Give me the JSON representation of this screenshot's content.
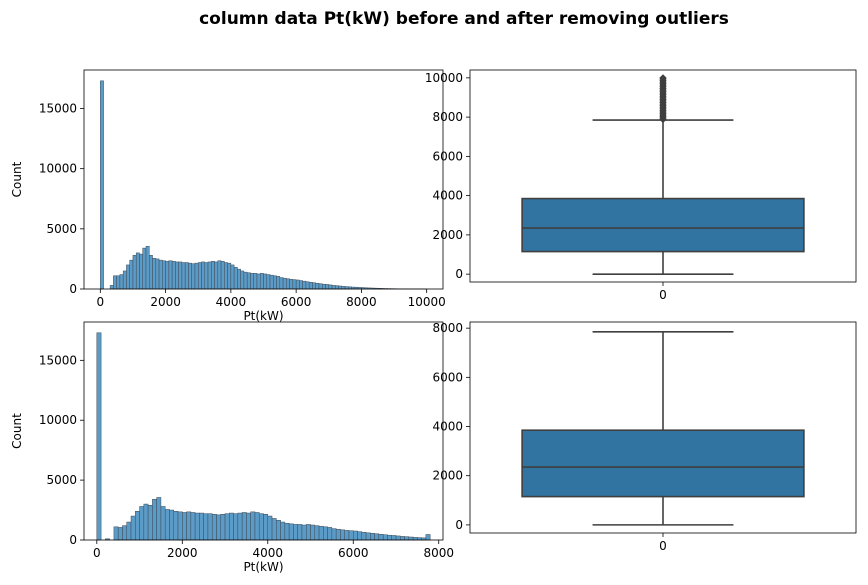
{
  "figure": {
    "title": "column data Pt(kW) before and after removing outliers"
  },
  "colors": {
    "hist_fill": "#5b9bc8",
    "hist_edge": "#3f4a55",
    "box_fill": "#3274a1",
    "box_line": "#3f3f3f"
  },
  "chart_data": [
    {
      "type": "bar",
      "subtype": "histogram",
      "panel": "top-left",
      "xlabel": "Pt(kW)",
      "ylabel": "Count",
      "xlim": [
        -500,
        10500
      ],
      "ylim": [
        0,
        18200
      ],
      "xticks": [
        0,
        2000,
        4000,
        6000,
        8000,
        10000
      ],
      "yticks": [
        0,
        5000,
        10000,
        15000
      ],
      "bin_width": 100,
      "bins": [
        {
          "x": 0,
          "value": 17300
        },
        {
          "x": 100,
          "value": 0
        },
        {
          "x": 200,
          "value": 0
        },
        {
          "x": 300,
          "value": 300
        },
        {
          "x": 400,
          "value": 1100
        },
        {
          "x": 500,
          "value": 1100
        },
        {
          "x": 600,
          "value": 1200
        },
        {
          "x": 700,
          "value": 1500
        },
        {
          "x": 800,
          "value": 2000
        },
        {
          "x": 900,
          "value": 2400
        },
        {
          "x": 1000,
          "value": 2800
        },
        {
          "x": 1100,
          "value": 3000
        },
        {
          "x": 1200,
          "value": 2900
        },
        {
          "x": 1300,
          "value": 3400
        },
        {
          "x": 1400,
          "value": 3550
        },
        {
          "x": 1500,
          "value": 2800
        },
        {
          "x": 1600,
          "value": 2550
        },
        {
          "x": 1700,
          "value": 2500
        },
        {
          "x": 1800,
          "value": 2400
        },
        {
          "x": 1900,
          "value": 2350
        },
        {
          "x": 2000,
          "value": 2300
        },
        {
          "x": 2100,
          "value": 2350
        },
        {
          "x": 2200,
          "value": 2300
        },
        {
          "x": 2300,
          "value": 2250
        },
        {
          "x": 2400,
          "value": 2250
        },
        {
          "x": 2500,
          "value": 2200
        },
        {
          "x": 2600,
          "value": 2200
        },
        {
          "x": 2700,
          "value": 2150
        },
        {
          "x": 2800,
          "value": 2100
        },
        {
          "x": 2900,
          "value": 2150
        },
        {
          "x": 3000,
          "value": 2200
        },
        {
          "x": 3100,
          "value": 2250
        },
        {
          "x": 3200,
          "value": 2200
        },
        {
          "x": 3300,
          "value": 2250
        },
        {
          "x": 3400,
          "value": 2300
        },
        {
          "x": 3500,
          "value": 2250
        },
        {
          "x": 3600,
          "value": 2350
        },
        {
          "x": 3700,
          "value": 2300
        },
        {
          "x": 3800,
          "value": 2200
        },
        {
          "x": 3900,
          "value": 2150
        },
        {
          "x": 4000,
          "value": 2000
        },
        {
          "x": 4100,
          "value": 1800
        },
        {
          "x": 4200,
          "value": 1650
        },
        {
          "x": 4300,
          "value": 1500
        },
        {
          "x": 4400,
          "value": 1400
        },
        {
          "x": 4500,
          "value": 1350
        },
        {
          "x": 4600,
          "value": 1300
        },
        {
          "x": 4700,
          "value": 1300
        },
        {
          "x": 4800,
          "value": 1250
        },
        {
          "x": 4900,
          "value": 1300
        },
        {
          "x": 5000,
          "value": 1250
        },
        {
          "x": 5100,
          "value": 1200
        },
        {
          "x": 5200,
          "value": 1150
        },
        {
          "x": 5300,
          "value": 1100
        },
        {
          "x": 5400,
          "value": 1050
        },
        {
          "x": 5500,
          "value": 950
        },
        {
          "x": 5600,
          "value": 900
        },
        {
          "x": 5700,
          "value": 850
        },
        {
          "x": 5800,
          "value": 800
        },
        {
          "x": 5900,
          "value": 780
        },
        {
          "x": 6000,
          "value": 750
        },
        {
          "x": 6100,
          "value": 700
        },
        {
          "x": 6200,
          "value": 650
        },
        {
          "x": 6300,
          "value": 600
        },
        {
          "x": 6400,
          "value": 560
        },
        {
          "x": 6500,
          "value": 520
        },
        {
          "x": 6600,
          "value": 480
        },
        {
          "x": 6700,
          "value": 440
        },
        {
          "x": 6800,
          "value": 400
        },
        {
          "x": 6900,
          "value": 380
        },
        {
          "x": 7000,
          "value": 340
        },
        {
          "x": 7100,
          "value": 300
        },
        {
          "x": 7200,
          "value": 280
        },
        {
          "x": 7300,
          "value": 250
        },
        {
          "x": 7400,
          "value": 220
        },
        {
          "x": 7500,
          "value": 200
        },
        {
          "x": 7600,
          "value": 180
        },
        {
          "x": 7700,
          "value": 160
        },
        {
          "x": 7800,
          "value": 150
        },
        {
          "x": 7900,
          "value": 130
        },
        {
          "x": 8000,
          "value": 120
        },
        {
          "x": 8100,
          "value": 100
        },
        {
          "x": 8200,
          "value": 90
        },
        {
          "x": 8300,
          "value": 80
        },
        {
          "x": 8400,
          "value": 70
        },
        {
          "x": 8500,
          "value": 60
        },
        {
          "x": 8600,
          "value": 50
        },
        {
          "x": 8700,
          "value": 40
        },
        {
          "x": 8800,
          "value": 35
        },
        {
          "x": 8900,
          "value": 30
        },
        {
          "x": 9000,
          "value": 25
        },
        {
          "x": 9100,
          "value": 20
        },
        {
          "x": 9200,
          "value": 18
        },
        {
          "x": 9300,
          "value": 15
        },
        {
          "x": 9400,
          "value": 12
        },
        {
          "x": 9500,
          "value": 10
        },
        {
          "x": 9600,
          "value": 8
        },
        {
          "x": 9700,
          "value": 6
        },
        {
          "x": 9800,
          "value": 5
        },
        {
          "x": 9900,
          "value": 5
        }
      ]
    },
    {
      "type": "boxplot",
      "panel": "top-right",
      "xticks": [
        "0"
      ],
      "yticks": [
        0,
        2000,
        4000,
        6000,
        8000,
        10000
      ],
      "ylim": [
        -400,
        10400
      ],
      "min": 0,
      "q1": 1150,
      "median": 2350,
      "q3": 3850,
      "whisker_high": 7850,
      "outliers": [
        7880,
        7950,
        8020,
        8100,
        8180,
        8260,
        8340,
        8420,
        8500,
        8580,
        8660,
        8740,
        8820,
        8900,
        8980,
        9060,
        9140,
        9220,
        9300,
        9380,
        9460,
        9540,
        9620,
        9700,
        9780,
        9860,
        9940,
        10000
      ]
    },
    {
      "type": "bar",
      "subtype": "histogram",
      "panel": "bottom-left",
      "xlabel": "Pt(kW)",
      "ylabel": "Count",
      "xlim": [
        -300,
        8100
      ],
      "ylim": [
        0,
        18200
      ],
      "xticks": [
        0,
        2000,
        4000,
        6000,
        8000
      ],
      "yticks": [
        0,
        5000,
        10000,
        15000
      ],
      "bin_width": 100,
      "bins": [
        {
          "x": 0,
          "value": 17300
        },
        {
          "x": 100,
          "value": 0
        },
        {
          "x": 200,
          "value": 100
        },
        {
          "x": 300,
          "value": 0
        },
        {
          "x": 400,
          "value": 1100
        },
        {
          "x": 500,
          "value": 1050
        },
        {
          "x": 600,
          "value": 1200
        },
        {
          "x": 700,
          "value": 1500
        },
        {
          "x": 800,
          "value": 2000
        },
        {
          "x": 900,
          "value": 2400
        },
        {
          "x": 1000,
          "value": 2800
        },
        {
          "x": 1100,
          "value": 3000
        },
        {
          "x": 1200,
          "value": 2900
        },
        {
          "x": 1300,
          "value": 3400
        },
        {
          "x": 1400,
          "value": 3550
        },
        {
          "x": 1500,
          "value": 2800
        },
        {
          "x": 1600,
          "value": 2550
        },
        {
          "x": 1700,
          "value": 2500
        },
        {
          "x": 1800,
          "value": 2400
        },
        {
          "x": 1900,
          "value": 2350
        },
        {
          "x": 2000,
          "value": 2300
        },
        {
          "x": 2100,
          "value": 2350
        },
        {
          "x": 2200,
          "value": 2300
        },
        {
          "x": 2300,
          "value": 2250
        },
        {
          "x": 2400,
          "value": 2250
        },
        {
          "x": 2500,
          "value": 2200
        },
        {
          "x": 2600,
          "value": 2200
        },
        {
          "x": 2700,
          "value": 2150
        },
        {
          "x": 2800,
          "value": 2100
        },
        {
          "x": 2900,
          "value": 2150
        },
        {
          "x": 3000,
          "value": 2200
        },
        {
          "x": 3100,
          "value": 2250
        },
        {
          "x": 3200,
          "value": 2200
        },
        {
          "x": 3300,
          "value": 2250
        },
        {
          "x": 3400,
          "value": 2300
        },
        {
          "x": 3500,
          "value": 2250
        },
        {
          "x": 3600,
          "value": 2350
        },
        {
          "x": 3700,
          "value": 2300
        },
        {
          "x": 3800,
          "value": 2200
        },
        {
          "x": 3900,
          "value": 2150
        },
        {
          "x": 4000,
          "value": 2000
        },
        {
          "x": 4100,
          "value": 1800
        },
        {
          "x": 4200,
          "value": 1650
        },
        {
          "x": 4300,
          "value": 1500
        },
        {
          "x": 4400,
          "value": 1400
        },
        {
          "x": 4500,
          "value": 1350
        },
        {
          "x": 4600,
          "value": 1300
        },
        {
          "x": 4700,
          "value": 1300
        },
        {
          "x": 4800,
          "value": 1250
        },
        {
          "x": 4900,
          "value": 1300
        },
        {
          "x": 5000,
          "value": 1250
        },
        {
          "x": 5100,
          "value": 1200
        },
        {
          "x": 5200,
          "value": 1150
        },
        {
          "x": 5300,
          "value": 1100
        },
        {
          "x": 5400,
          "value": 1050
        },
        {
          "x": 5500,
          "value": 950
        },
        {
          "x": 5600,
          "value": 900
        },
        {
          "x": 5700,
          "value": 850
        },
        {
          "x": 5800,
          "value": 800
        },
        {
          "x": 5900,
          "value": 780
        },
        {
          "x": 6000,
          "value": 750
        },
        {
          "x": 6100,
          "value": 700
        },
        {
          "x": 6200,
          "value": 650
        },
        {
          "x": 6300,
          "value": 600
        },
        {
          "x": 6400,
          "value": 560
        },
        {
          "x": 6500,
          "value": 520
        },
        {
          "x": 6600,
          "value": 480
        },
        {
          "x": 6700,
          "value": 440
        },
        {
          "x": 6800,
          "value": 400
        },
        {
          "x": 6900,
          "value": 380
        },
        {
          "x": 7000,
          "value": 340
        },
        {
          "x": 7100,
          "value": 300
        },
        {
          "x": 7200,
          "value": 280
        },
        {
          "x": 7300,
          "value": 250
        },
        {
          "x": 7400,
          "value": 220
        },
        {
          "x": 7500,
          "value": 200
        },
        {
          "x": 7600,
          "value": 180
        },
        {
          "x": 7700,
          "value": 460
        },
        {
          "x": 7800,
          "value": 0
        }
      ]
    },
    {
      "type": "boxplot",
      "panel": "bottom-right",
      "xticks": [
        "0"
      ],
      "yticks": [
        0,
        2000,
        4000,
        6000,
        8000
      ],
      "ylim": [
        -330,
        8250
      ],
      "min": 0,
      "q1": 1150,
      "median": 2350,
      "q3": 3850,
      "whisker_high": 7850,
      "outliers": []
    }
  ]
}
